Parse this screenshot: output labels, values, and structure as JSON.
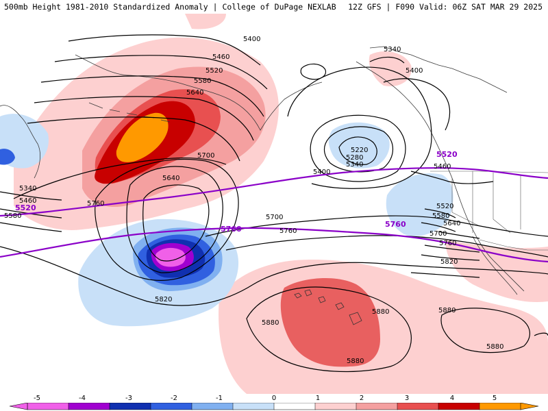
{
  "header": {
    "title_left": "500mb Height 1981-2010 Standardized Anomaly | College of DuPage NEXLAB",
    "title_right": "12Z GFS | F090 Valid: 06Z SAT MAR 29 2025"
  },
  "colorbar": {
    "ticks": [
      "-5",
      "-4",
      "-3",
      "-2",
      "-1",
      "0",
      "1",
      "2",
      "3",
      "4",
      "5"
    ],
    "colors": [
      "#f060e8",
      "#a000d0",
      "#1030b0",
      "#3060e0",
      "#80b0f0",
      "#c8e0f8",
      "#ffffff",
      "#fdd0d0",
      "#f4a0a0",
      "#e85050",
      "#c80000",
      "#ff9900"
    ]
  },
  "map": {
    "contour_labels": [
      {
        "text": "5400"
      },
      {
        "text": "5460"
      },
      {
        "text": "5520"
      },
      {
        "text": "5580"
      },
      {
        "text": "5640"
      },
      {
        "text": "5700"
      },
      {
        "text": "5640"
      },
      {
        "text": "5760"
      },
      {
        "text": "5340"
      },
      {
        "text": "5460"
      },
      {
        "text": "5580"
      },
      {
        "text": "5700"
      },
      {
        "text": "5760"
      },
      {
        "text": "5820"
      },
      {
        "text": "5340"
      },
      {
        "text": "5400"
      },
      {
        "text": "5220"
      },
      {
        "text": "5280"
      },
      {
        "text": "5340"
      },
      {
        "text": "5400"
      },
      {
        "text": "5460"
      },
      {
        "text": "5520"
      },
      {
        "text": "5580"
      },
      {
        "text": "5640"
      },
      {
        "text": "5700"
      },
      {
        "text": "5760"
      },
      {
        "text": "5820"
      },
      {
        "text": "5880"
      },
      {
        "text": "5880"
      },
      {
        "text": "5880"
      },
      {
        "text": "5880"
      },
      {
        "text": "5880"
      }
    ],
    "purple_labels": [
      {
        "text": "5520"
      },
      {
        "text": "5760"
      },
      {
        "text": "5520"
      },
      {
        "text": "5760"
      }
    ]
  }
}
